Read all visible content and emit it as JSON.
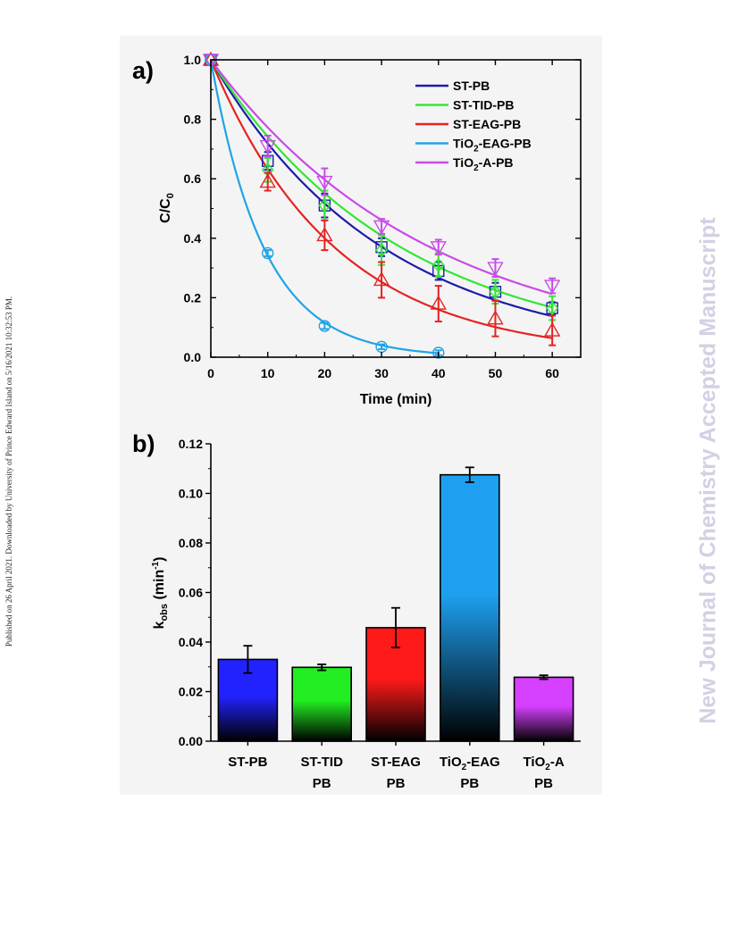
{
  "page": {
    "side_left_text": "Published on 26 April 2021. Downloaded by University of Prince Edward Island on 5/16/2021 10:32:53 PM.",
    "side_right_text": "New Journal of Chemistry Accepted Manuscript"
  },
  "chart_data": [
    {
      "panel_label": "a)",
      "type": "scatter",
      "xlabel": "Time (min)",
      "ylabel": "C/C0",
      "ylabel_main": "C/C",
      "ylabel_sub": "0",
      "xlim": [
        0,
        65
      ],
      "ylim": [
        0,
        1.0
      ],
      "xticks": [
        0,
        10,
        20,
        30,
        40,
        50,
        60
      ],
      "yticks": [
        0.0,
        0.2,
        0.4,
        0.6,
        0.8,
        1.0
      ],
      "ytick_labels": [
        "0.0",
        "0.2",
        "0.4",
        "0.6",
        "0.8",
        "1.0"
      ],
      "legend_position": "top-right",
      "series": [
        {
          "name": "ST-PB",
          "legend_main": "ST-PB",
          "legend_sub": "",
          "legend_rest": "",
          "color": "#1c1ca8",
          "marker": "square",
          "x": [
            0,
            10,
            20,
            30,
            40,
            50,
            60
          ],
          "y": [
            1.0,
            0.66,
            0.51,
            0.37,
            0.29,
            0.22,
            0.165
          ],
          "err": [
            0,
            0.03,
            0.04,
            0.03,
            0.03,
            0.03,
            0.02
          ],
          "k": 0.033
        },
        {
          "name": "ST-TID-PB",
          "legend_main": "ST-TID-PB",
          "legend_sub": "",
          "legend_rest": "",
          "color": "#33e633",
          "marker": "diamond",
          "x": [
            0,
            10,
            20,
            30,
            40,
            50,
            60
          ],
          "y": [
            1.0,
            0.63,
            0.51,
            0.36,
            0.31,
            0.22,
            0.165
          ],
          "err": [
            0,
            0.04,
            0.05,
            0.05,
            0.04,
            0.04,
            0.04
          ],
          "k": 0.0298
        },
        {
          "name": "ST-EAG-PB",
          "legend_main": "ST-EAG-PB",
          "legend_sub": "",
          "legend_rest": "",
          "color": "#e62222",
          "marker": "triangle-up",
          "x": [
            0,
            10,
            20,
            30,
            40,
            50,
            60
          ],
          "y": [
            1.0,
            0.59,
            0.41,
            0.26,
            0.18,
            0.13,
            0.09
          ],
          "err": [
            0,
            0.03,
            0.05,
            0.06,
            0.06,
            0.06,
            0.05
          ],
          "k": 0.0458
        },
        {
          "name": "TiO2-EAG-PB",
          "legend_main": "TiO",
          "legend_sub": "2",
          "legend_rest": "-EAG-PB",
          "color": "#1fa4e6",
          "marker": "circle",
          "x": [
            0,
            10,
            20,
            30,
            40
          ],
          "y": [
            1.0,
            0.35,
            0.105,
            0.035,
            0.015
          ],
          "err": [
            0,
            0.01,
            0.01,
            0.008,
            0.008
          ],
          "k": 0.1075
        },
        {
          "name": "TiO2-A-PB",
          "legend_main": "TiO",
          "legend_sub": "2",
          "legend_rest": "-A-PB",
          "color": "#c84ce6",
          "marker": "triangle-down",
          "x": [
            0,
            10,
            20,
            30,
            40,
            50,
            60
          ],
          "y": [
            1.0,
            0.71,
            0.59,
            0.44,
            0.37,
            0.3,
            0.24
          ],
          "err": [
            0,
            0.035,
            0.045,
            0.025,
            0.025,
            0.03,
            0.025
          ],
          "k": 0.0258
        }
      ]
    },
    {
      "panel_label": "b)",
      "type": "bar",
      "ylabel": "kobs (min-1)",
      "ylabel_main": "k",
      "ylabel_sub": "obs",
      "ylabel_unit": " (min",
      "ylabel_sup": "-1",
      "ylabel_close": ")",
      "ylim": [
        0,
        0.12
      ],
      "yticks": [
        0.0,
        0.02,
        0.04,
        0.06,
        0.08,
        0.1,
        0.12
      ],
      "ytick_labels": [
        "0.00",
        "0.02",
        "0.04",
        "0.06",
        "0.08",
        "0.10",
        "0.12"
      ],
      "categories": [
        {
          "line1_main": "ST-PB",
          "line1_sub": "",
          "line1_rest": "",
          "line2": ""
        },
        {
          "line1_main": "ST-TID",
          "line1_sub": "",
          "line1_rest": "",
          "line2": "PB"
        },
        {
          "line1_main": "ST-EAG",
          "line1_sub": "",
          "line1_rest": "",
          "line2": "PB"
        },
        {
          "line1_main": "TiO",
          "line1_sub": "2",
          "line1_rest": "-EAG",
          "line2": "PB"
        },
        {
          "line1_main": "TiO",
          "line1_sub": "2",
          "line1_rest": "-A",
          "line2": "PB"
        }
      ],
      "values": [
        0.033,
        0.0298,
        0.0458,
        0.1075,
        0.0258
      ],
      "errors": [
        0.0055,
        0.0012,
        0.008,
        0.003,
        0.0008
      ],
      "colors": [
        "#2222ff",
        "#22ee22",
        "#ff1a1a",
        "#1ea0f0",
        "#d640ff"
      ]
    }
  ]
}
